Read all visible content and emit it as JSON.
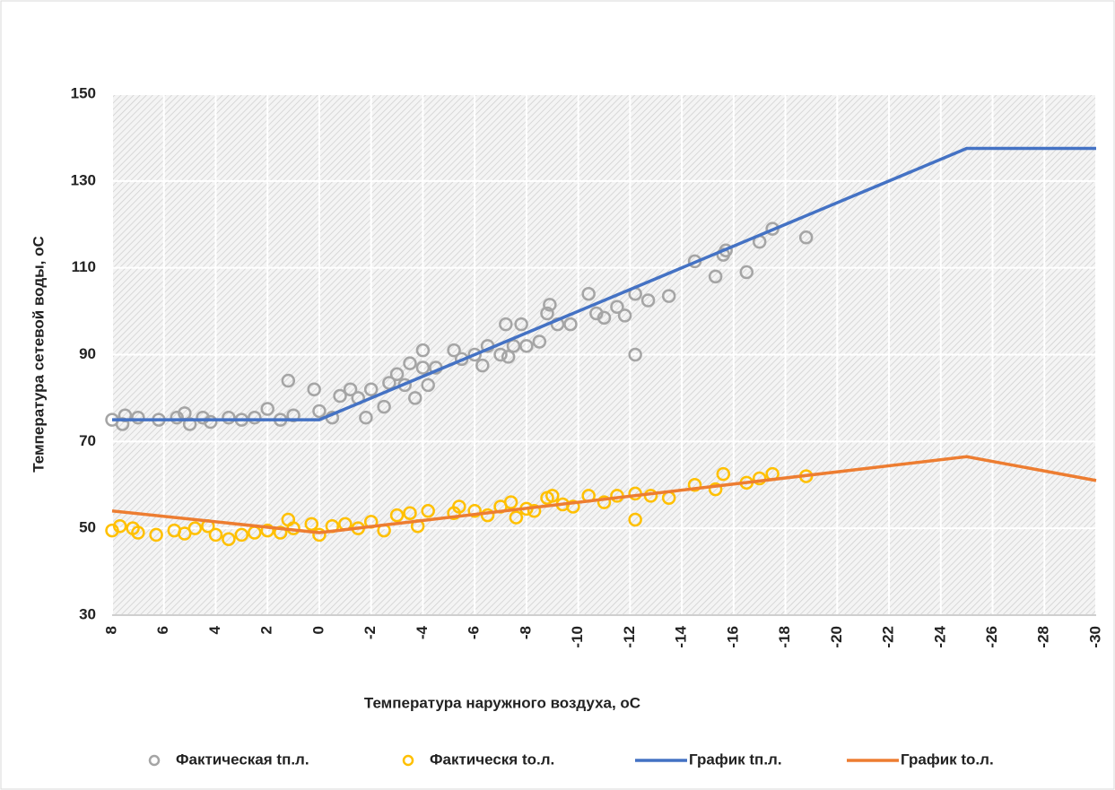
{
  "chart_data": {
    "type": "scatter",
    "xlabel": "Температура наружного воздуха, оС",
    "ylabel": "Температура сетевой воды, оС",
    "xlim": [
      8,
      -30
    ],
    "xticks": [
      8,
      6,
      4,
      2,
      0,
      -2,
      -4,
      -6,
      -8,
      -10,
      -12,
      -14,
      -16,
      -18,
      -20,
      -22,
      -24,
      -26,
      -28,
      -30
    ],
    "ylim": [
      30,
      150
    ],
    "yticks": [
      30,
      50,
      70,
      90,
      110,
      130,
      150
    ],
    "grid": true,
    "legend": "bottom",
    "series": [
      {
        "name": "Фактическая tп.л.",
        "type": "scatter",
        "color": "#a5a5a5",
        "x": [
          8,
          7.6,
          7.5,
          7,
          6.2,
          5.5,
          5.2,
          5,
          4.5,
          4.2,
          3.5,
          3,
          2.5,
          2,
          1.5,
          1.2,
          1,
          0.2,
          0,
          -0.5,
          -0.8,
          -1.2,
          -1.5,
          -1.8,
          -2,
          -2.5,
          -2.7,
          -3,
          -3.3,
          -3.5,
          -3.7,
          -4,
          -4,
          -4.2,
          -4.5,
          -5.2,
          -5.5,
          -6,
          -6.3,
          -6.5,
          -7,
          -7.2,
          -7.3,
          -7.5,
          -7.8,
          -8,
          -8.5,
          -8.8,
          -8.9,
          -9.2,
          -9.7,
          -10.4,
          -10.7,
          -11,
          -11.5,
          -11.8,
          -12.2,
          -12.2,
          -12.7,
          -13.5,
          -14.5,
          -15.3,
          -15.6,
          -15.7,
          -16.5,
          -17,
          -17.5,
          -18.8
        ],
        "values": [
          75,
          74,
          76,
          75.5,
          75,
          75.5,
          76.5,
          74,
          75.5,
          74.5,
          75.5,
          75,
          75.5,
          77.5,
          75,
          84,
          76,
          82,
          77,
          75.5,
          80.5,
          82,
          80,
          75.5,
          82,
          78,
          83.5,
          85.5,
          83,
          88,
          80,
          87,
          91,
          83,
          87,
          91,
          89,
          90,
          87.5,
          92,
          90,
          97,
          89.5,
          92,
          97,
          92,
          93,
          99.5,
          101.5,
          97,
          97,
          104,
          99.5,
          98.5,
          101,
          99,
          104,
          90,
          102.5,
          103.5,
          111.5,
          108,
          113,
          114,
          109,
          116,
          119,
          117
        ]
      },
      {
        "name": "Фактическя tо.л.",
        "type": "scatter",
        "color": "#ffc000",
        "x": [
          8,
          7.7,
          7.2,
          7,
          6.3,
          5.6,
          5.2,
          4.8,
          4.3,
          4,
          3.5,
          3,
          2.5,
          2,
          1.5,
          1.2,
          1,
          0.3,
          0,
          -0.5,
          -1,
          -1.5,
          -2,
          -2.5,
          -3,
          -3.5,
          -3.8,
          -4.2,
          -5.2,
          -5.4,
          -6,
          -6.5,
          -7,
          -7.4,
          -7.6,
          -8,
          -8.3,
          -8.8,
          -9,
          -9.4,
          -9.8,
          -10.4,
          -11,
          -11.5,
          -12.2,
          -12.2,
          -12.8,
          -13.5,
          -14.5,
          -15.3,
          -15.6,
          -16.5,
          -17,
          -17.5,
          -18.8
        ],
        "values": [
          49.5,
          50.5,
          50,
          49,
          48.5,
          49.5,
          48.8,
          50,
          50.5,
          48.5,
          47.5,
          48.5,
          49,
          49.5,
          49,
          52,
          50,
          51,
          48.5,
          50.5,
          51,
          50,
          51.5,
          49.5,
          53,
          53.5,
          50.5,
          54,
          53.5,
          55,
          54,
          53,
          55,
          56,
          52.5,
          54.5,
          54,
          57,
          57.5,
          55.5,
          55,
          57.5,
          56,
          57.5,
          58,
          52,
          57.5,
          57,
          60,
          59,
          62.5,
          60.5,
          61.5,
          62.5,
          62
        ]
      },
      {
        "name": "График tп.л.",
        "type": "line",
        "color": "#4472c4",
        "x": [
          8,
          0,
          -25,
          -30
        ],
        "values": [
          75,
          75,
          137.5,
          137.5
        ]
      },
      {
        "name": "График tо.л.",
        "type": "line",
        "color": "#ed7d31",
        "x": [
          8,
          0,
          -25,
          -30
        ],
        "values": [
          54,
          49,
          66.5,
          61
        ]
      }
    ]
  }
}
